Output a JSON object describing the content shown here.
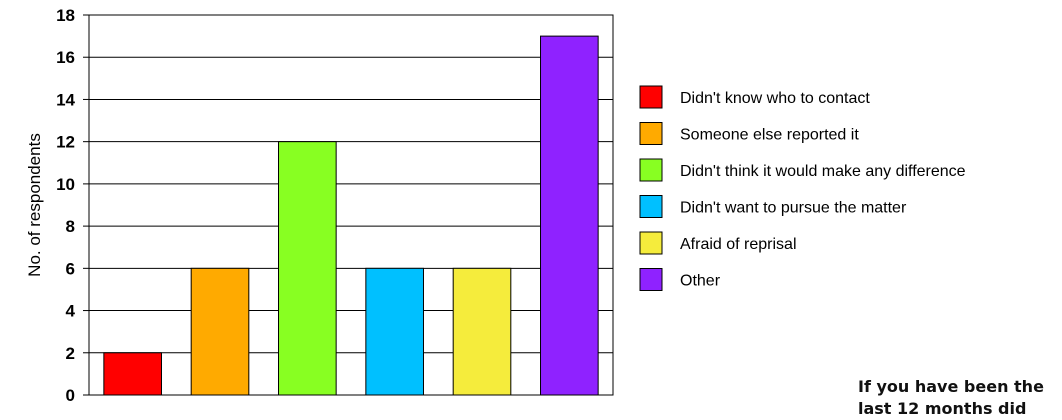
{
  "chart_data": {
    "type": "bar",
    "title": "",
    "xlabel": "",
    "ylabel": "No. of respondents",
    "ylim": [
      0,
      18
    ],
    "yticks": [
      0,
      2,
      4,
      6,
      8,
      10,
      12,
      14,
      16,
      18
    ],
    "grid": true,
    "legend_position": "right",
    "categories": [
      "Didn't know who to contact",
      "Someone else reported it",
      "Didn't think it would make any difference",
      "Didn't want to pursue the matter",
      "Afraid of reprisal",
      "Other"
    ],
    "values": [
      2,
      6,
      12,
      6,
      6,
      17
    ],
    "colors": [
      "#ff0000",
      "#ffaa00",
      "#88ff22",
      "#00c0ff",
      "#f5ec3c",
      "#8f22ff"
    ]
  },
  "caption": {
    "line1": "If you have been the",
    "line2": "last 12 months did"
  }
}
